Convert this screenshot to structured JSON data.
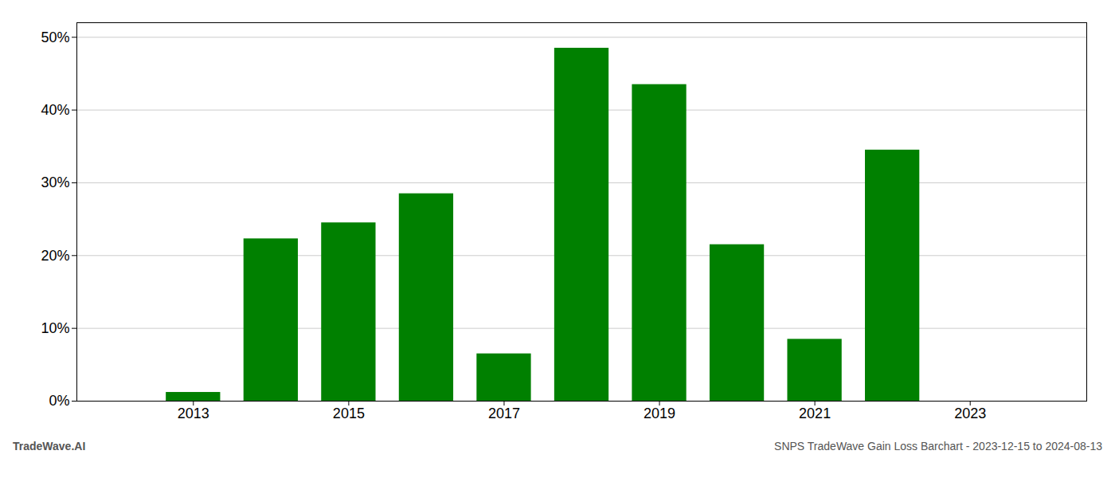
{
  "chart_data": {
    "type": "bar",
    "x": [
      2013,
      2014,
      2015,
      2016,
      2017,
      2018,
      2019,
      2020,
      2021,
      2022
    ],
    "values": [
      1.2,
      22.3,
      24.5,
      28.5,
      6.5,
      48.5,
      43.5,
      21.5,
      8.5,
      34.5
    ],
    "color": "#008000",
    "xlim": [
      2011.5,
      2024.5
    ],
    "xticks": [
      2013,
      2015,
      2017,
      2019,
      2021,
      2023
    ],
    "ylim": [
      0,
      52
    ],
    "yticks": [
      {
        "value": 0,
        "label": "0%"
      },
      {
        "value": 10,
        "label": "10%"
      },
      {
        "value": 20,
        "label": "20%"
      },
      {
        "value": 30,
        "label": "30%"
      },
      {
        "value": 40,
        "label": "40%"
      },
      {
        "value": 50,
        "label": "50%"
      }
    ],
    "grid": true,
    "annotations": [
      "TradeWave.AI",
      "SNPS TradeWave Gain Loss Barchart - 2023-12-15 to 2024-08-13"
    ]
  }
}
